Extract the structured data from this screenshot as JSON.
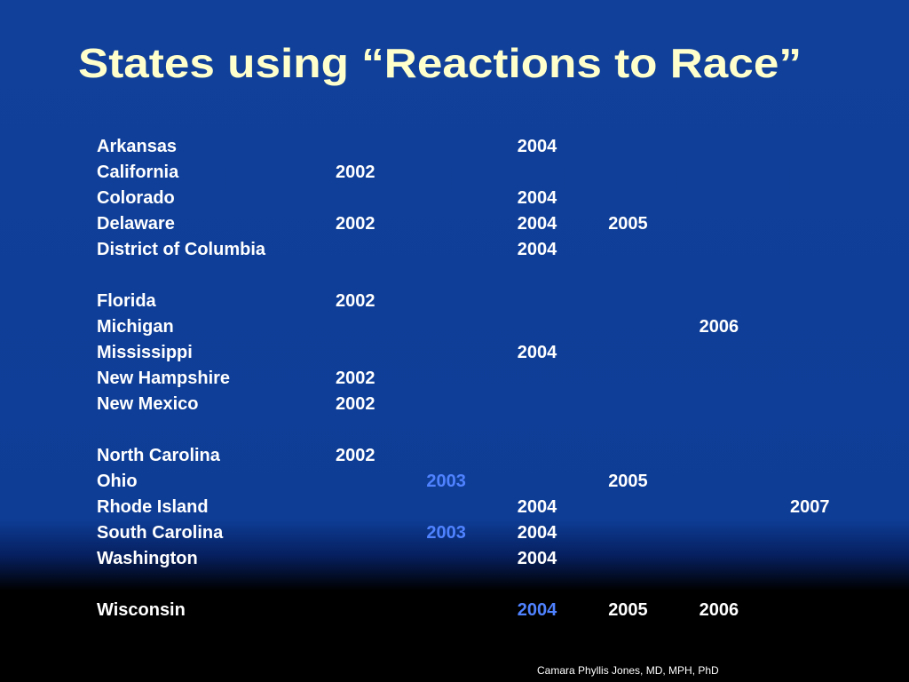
{
  "title": "States using “Reactions to Race”",
  "rows": [
    {
      "state": "Arkansas",
      "years": [
        2004
      ]
    },
    {
      "state": "California",
      "years": [
        2002
      ]
    },
    {
      "state": "Colorado",
      "years": [
        2004
      ]
    },
    {
      "state": "Delaware",
      "years": [
        2002,
        2004,
        2005
      ]
    },
    {
      "state": "District of Columbia",
      "years": [
        2004
      ]
    },
    {
      "state": "Florida",
      "years": [
        2002
      ]
    },
    {
      "state": "Michigan",
      "years": [
        2006
      ]
    },
    {
      "state": "Mississippi",
      "years": [
        2004
      ]
    },
    {
      "state": "New Hampshire",
      "years": [
        2002
      ]
    },
    {
      "state": "New Mexico",
      "years": [
        2002
      ]
    },
    {
      "state": "North Carolina",
      "years": [
        2002
      ]
    },
    {
      "state": "Ohio",
      "years": [
        2003,
        2005
      ]
    },
    {
      "state": "Rhode Island",
      "years": [
        2004,
        2007
      ]
    },
    {
      "state": "South Carolina",
      "years": [
        2003,
        2004
      ]
    },
    {
      "state": "Washington",
      "years": [
        2004
      ]
    },
    {
      "state": "Wisconsin",
      "years": [
        2004,
        2005,
        2006
      ]
    }
  ],
  "footer": "Camara Phyllis Jones, MD, MPH, PhD"
}
